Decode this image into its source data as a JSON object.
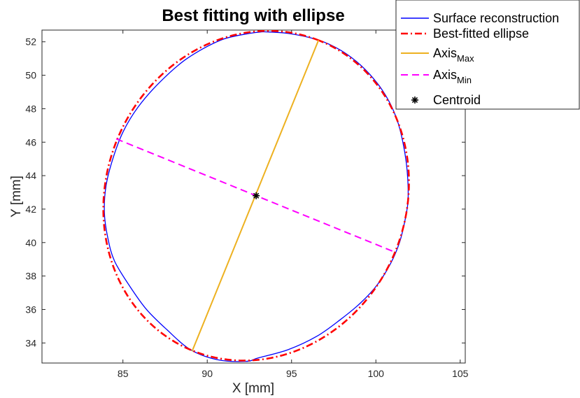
{
  "chart_data": {
    "type": "line",
    "title": "Best fitting with ellipse",
    "xlabel": "X [mm]",
    "ylabel": "Y [mm]",
    "xlim": [
      80.2,
      105.3
    ],
    "ylim": [
      32.8,
      52.7
    ],
    "xticks": [
      85,
      90,
      95,
      100,
      105
    ],
    "yticks": [
      34,
      36,
      38,
      40,
      42,
      44,
      46,
      48,
      50,
      52
    ],
    "grid": false,
    "legend_position": "top-right",
    "legend": [
      {
        "key": "surface",
        "label": "Surface reconstruction"
      },
      {
        "key": "ellipse",
        "label": "Best-fitted ellipse"
      },
      {
        "key": "axismax",
        "label": "Axis",
        "sub": "Max"
      },
      {
        "key": "axismin",
        "label": "Axis",
        "sub": "Min"
      },
      {
        "key": "centroid",
        "label": "Centroid"
      }
    ],
    "series": [
      {
        "key": "surface",
        "name": "Surface reconstruction",
        "color": "#0000ff",
        "style": "solid",
        "points": [
          [
            93.3,
            52.6
          ],
          [
            94.8,
            52.5
          ],
          [
            96.6,
            52.1
          ],
          [
            97.9,
            51.5
          ],
          [
            99.1,
            50.6
          ],
          [
            100.1,
            49.5
          ],
          [
            100.8,
            48.4
          ],
          [
            101.3,
            47.2
          ],
          [
            101.6,
            46.0
          ],
          [
            101.8,
            44.8
          ],
          [
            101.9,
            43.6
          ],
          [
            101.9,
            42.4
          ],
          [
            101.7,
            41.2
          ],
          [
            101.4,
            40.0
          ],
          [
            100.9,
            38.8
          ],
          [
            100.1,
            37.5
          ],
          [
            99.1,
            36.4
          ],
          [
            97.9,
            35.4
          ],
          [
            96.5,
            34.4
          ],
          [
            94.8,
            33.6
          ],
          [
            93.0,
            33.1
          ],
          [
            92.3,
            32.9
          ],
          [
            90.6,
            33.0
          ],
          [
            89.0,
            33.6
          ],
          [
            87.6,
            34.8
          ],
          [
            86.4,
            36.0
          ],
          [
            85.4,
            37.4
          ],
          [
            84.5,
            38.9
          ],
          [
            84.1,
            40.3
          ],
          [
            83.9,
            41.8
          ],
          [
            84.0,
            43.4
          ],
          [
            84.4,
            45.0
          ],
          [
            85.0,
            46.6
          ],
          [
            85.9,
            48.1
          ],
          [
            87.2,
            49.6
          ],
          [
            88.8,
            51.0
          ],
          [
            90.8,
            52.1
          ],
          [
            92.5,
            52.5
          ],
          [
            93.3,
            52.6
          ]
        ]
      },
      {
        "key": "ellipse",
        "name": "Best-fitted ellipse",
        "color": "#ff0000",
        "style": "dashdot",
        "center": [
          92.9,
          42.8
        ],
        "semi_major": 10.0,
        "semi_minor": 8.9,
        "major_axis_endpoints": [
          [
            89.1,
            33.5
          ],
          [
            96.6,
            52.1
          ]
        ],
        "minor_axis_endpoints": [
          [
            84.6,
            46.2
          ],
          [
            101.2,
            39.4
          ]
        ]
      },
      {
        "key": "axismax",
        "name": "Axis Max",
        "color": "#edb120",
        "style": "solid",
        "points": [
          [
            89.1,
            33.5
          ],
          [
            96.6,
            52.1
          ]
        ]
      },
      {
        "key": "axismin",
        "name": "Axis Min",
        "color": "#ff00ff",
        "style": "dashed",
        "points": [
          [
            84.6,
            46.2
          ],
          [
            101.2,
            39.4
          ]
        ]
      },
      {
        "key": "centroid",
        "name": "Centroid",
        "color": "#000000",
        "style": "marker",
        "points": [
          [
            92.9,
            42.8
          ]
        ]
      }
    ]
  }
}
